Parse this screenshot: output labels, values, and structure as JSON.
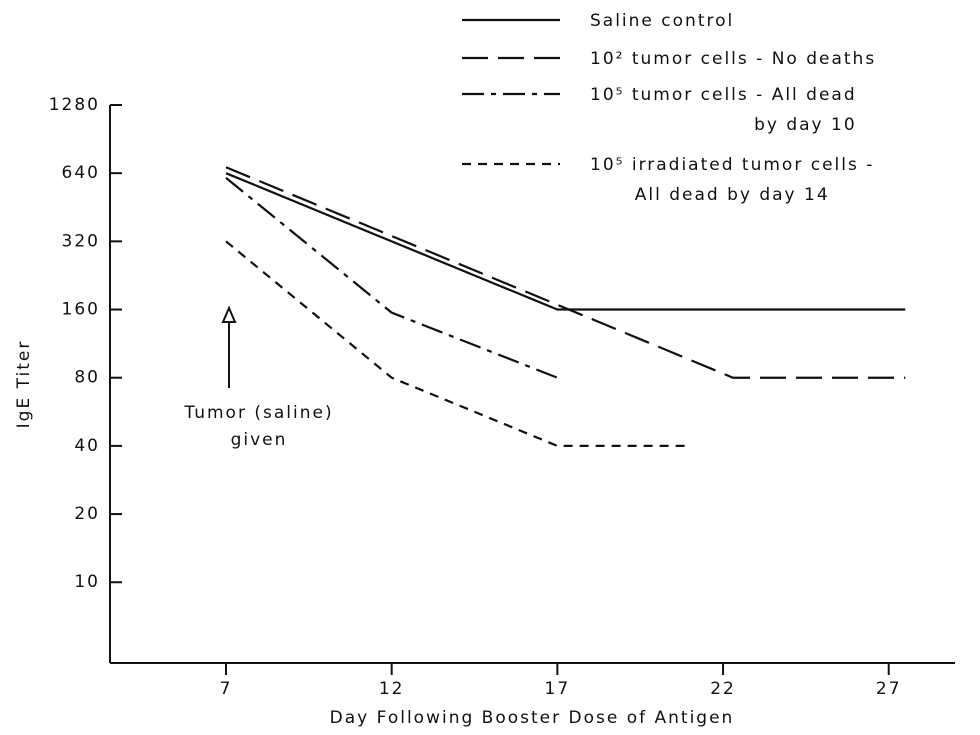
{
  "chart_data": {
    "type": "line",
    "x_label": "Day Following Booster Dose of Antigen",
    "y_label": "IgE Titer",
    "annotation": "Tumor (saline)\ngiven",
    "yscale": "log",
    "xlim": [
      3.5,
      29
    ],
    "xticks": [
      7,
      12,
      17,
      22,
      27
    ],
    "ylim": [
      4.4,
      1280
    ],
    "yticks": [
      10,
      20,
      40,
      80,
      160,
      320,
      640,
      1280
    ],
    "series": [
      {
        "name": "Saline control",
        "color": "#111111",
        "dash": "solid",
        "x": [
          7,
          12,
          17,
          27.5
        ],
        "values": [
          640,
          320,
          160,
          160
        ]
      },
      {
        "name": "10² tumor cells - No deaths",
        "color": "#111111",
        "dash": "long-dash",
        "x": [
          7,
          17,
          22.3,
          27.5
        ],
        "values": [
          680,
          168,
          80,
          80
        ]
      },
      {
        "name": "10⁵ tumor cells - All dead\nby day 10",
        "color": "#111111",
        "dash": "dash-dot",
        "x": [
          7,
          12,
          17
        ],
        "values": [
          610,
          155,
          80
        ]
      },
      {
        "name": "10⁵ irradiated tumor cells -\nAll dead by day 14",
        "color": "#111111",
        "dash": "short-dash",
        "x": [
          7,
          12,
          17,
          21
        ],
        "values": [
          320,
          80,
          40,
          40
        ]
      }
    ]
  }
}
